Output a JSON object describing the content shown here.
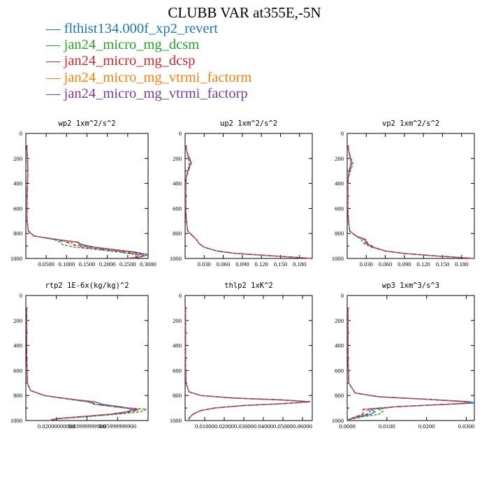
{
  "figure": {
    "title": "CLUBB VAR at355E,-5N"
  },
  "legend": [
    {
      "name": "flthist134.000f_xp2_revert",
      "color": "#1f77b4"
    },
    {
      "name": "jan24_micro_mg_dcsm",
      "color": "#2ca02c"
    },
    {
      "name": "jan24_micro_mg_dcsp",
      "color": "#d62728"
    },
    {
      "name": "jan24_micro_mg_vtrmi_factorm",
      "color": "#ff7f0e"
    },
    {
      "name": "jan24_micro_mg_vtrmi_factorp",
      "color": "#7b3f99"
    }
  ],
  "chart_data": [
    {
      "type": "line",
      "title": "wp2  1xm^2/s^2",
      "ylim": [
        1000,
        0
      ],
      "xlim": [
        0,
        0.3
      ],
      "yticks": [
        "0",
        "200",
        "400",
        "600",
        "800",
        "1000"
      ],
      "xticks": [
        "0.0500",
        "0.1000",
        "0.1500",
        "0.2000",
        "0.2500",
        "0.3000"
      ],
      "y": [
        100,
        200,
        300,
        400,
        500,
        600,
        700,
        780,
        820,
        850,
        870,
        890,
        910,
        930,
        950,
        970,
        990,
        1000
      ],
      "series": [
        {
          "x": [
            0.002,
            0.004,
            0.005,
            0.004,
            0.003,
            0.003,
            0.003,
            0.006,
            0.02,
            0.08,
            0.125,
            0.14,
            0.17,
            0.22,
            0.27,
            0.3,
            0.28,
            0.26
          ]
        },
        {
          "x": [
            0.002,
            0.004,
            0.005,
            0.004,
            0.003,
            0.003,
            0.003,
            0.006,
            0.02,
            0.07,
            0.085,
            0.09,
            0.12,
            0.18,
            0.23,
            0.27,
            0.27,
            0.25
          ]
        },
        {
          "x": [
            0.002,
            0.004,
            0.005,
            0.004,
            0.003,
            0.003,
            0.003,
            0.006,
            0.02,
            0.075,
            0.13,
            0.13,
            0.16,
            0.21,
            0.26,
            0.29,
            0.28,
            0.26
          ]
        },
        {
          "x": [
            0.002,
            0.004,
            0.005,
            0.004,
            0.003,
            0.003,
            0.003,
            0.006,
            0.02,
            0.075,
            0.11,
            0.12,
            0.15,
            0.2,
            0.25,
            0.28,
            0.27,
            0.25
          ]
        },
        {
          "x": [
            0.002,
            0.004,
            0.005,
            0.004,
            0.003,
            0.003,
            0.003,
            0.006,
            0.02,
            0.075,
            0.1,
            0.115,
            0.14,
            0.19,
            0.24,
            0.28,
            0.27,
            0.25
          ]
        }
      ]
    },
    {
      "type": "line",
      "title": "up2  1xm^2/s^2",
      "ylim": [
        1000,
        0
      ],
      "xlim": [
        0,
        0.2
      ],
      "yticks": [
        "0",
        "200",
        "400",
        "600",
        "800",
        "1000"
      ],
      "xticks": [
        "0.030",
        "0.060",
        "0.090",
        "0.120",
        "0.150",
        "0.180"
      ],
      "y": [
        100,
        150,
        200,
        230,
        260,
        300,
        350,
        400,
        500,
        600,
        700,
        780,
        820,
        850,
        880,
        910,
        940,
        960,
        980,
        1000
      ],
      "series": [
        {
          "x": [
            0.001,
            0.003,
            0.006,
            0.009,
            0.007,
            0.004,
            0.002,
            0.001,
            0.001,
            0.001,
            0.002,
            0.004,
            0.012,
            0.018,
            0.022,
            0.03,
            0.05,
            0.08,
            0.14,
            0.2
          ]
        },
        {
          "x": [
            0.001,
            0.003,
            0.005,
            0.006,
            0.006,
            0.004,
            0.002,
            0.001,
            0.001,
            0.001,
            0.002,
            0.004,
            0.012,
            0.018,
            0.022,
            0.03,
            0.05,
            0.08,
            0.14,
            0.2
          ]
        },
        {
          "x": [
            0.001,
            0.003,
            0.007,
            0.01,
            0.008,
            0.005,
            0.002,
            0.001,
            0.001,
            0.001,
            0.002,
            0.004,
            0.012,
            0.018,
            0.022,
            0.03,
            0.05,
            0.08,
            0.14,
            0.2
          ]
        },
        {
          "x": [
            0.001,
            0.003,
            0.006,
            0.009,
            0.007,
            0.004,
            0.002,
            0.001,
            0.001,
            0.001,
            0.002,
            0.004,
            0.012,
            0.018,
            0.022,
            0.03,
            0.05,
            0.08,
            0.14,
            0.2
          ]
        },
        {
          "x": [
            0.001,
            0.003,
            0.006,
            0.009,
            0.007,
            0.004,
            0.002,
            0.001,
            0.001,
            0.001,
            0.002,
            0.004,
            0.012,
            0.018,
            0.022,
            0.03,
            0.05,
            0.08,
            0.14,
            0.2
          ]
        }
      ]
    },
    {
      "type": "line",
      "title": "vp2  1xm^2/s^2",
      "ylim": [
        1000,
        0
      ],
      "xlim": [
        0,
        0.2
      ],
      "yticks": [
        "0",
        "200",
        "400",
        "600",
        "800",
        "1000"
      ],
      "xticks": [
        "0.030",
        "0.060",
        "0.090",
        "0.120",
        "0.150",
        "0.180"
      ],
      "y": [
        100,
        150,
        200,
        230,
        260,
        300,
        350,
        400,
        500,
        600,
        700,
        780,
        820,
        850,
        880,
        910,
        940,
        960,
        980,
        1000
      ],
      "series": [
        {
          "x": [
            0.001,
            0.003,
            0.005,
            0.006,
            0.005,
            0.003,
            0.002,
            0.001,
            0.001,
            0.001,
            0.002,
            0.004,
            0.014,
            0.028,
            0.03,
            0.04,
            0.06,
            0.09,
            0.14,
            0.2
          ]
        },
        {
          "x": [
            0.001,
            0.003,
            0.006,
            0.009,
            0.008,
            0.005,
            0.002,
            0.001,
            0.001,
            0.001,
            0.002,
            0.004,
            0.014,
            0.022,
            0.026,
            0.038,
            0.06,
            0.09,
            0.14,
            0.2
          ]
        },
        {
          "x": [
            0.001,
            0.003,
            0.005,
            0.007,
            0.006,
            0.004,
            0.002,
            0.001,
            0.001,
            0.001,
            0.002,
            0.004,
            0.014,
            0.03,
            0.032,
            0.042,
            0.06,
            0.09,
            0.14,
            0.2
          ]
        },
        {
          "x": [
            0.001,
            0.003,
            0.005,
            0.006,
            0.005,
            0.003,
            0.002,
            0.001,
            0.001,
            0.001,
            0.002,
            0.004,
            0.014,
            0.026,
            0.029,
            0.04,
            0.06,
            0.09,
            0.14,
            0.2
          ]
        },
        {
          "x": [
            0.001,
            0.003,
            0.005,
            0.006,
            0.005,
            0.003,
            0.002,
            0.001,
            0.001,
            0.001,
            0.002,
            0.004,
            0.014,
            0.027,
            0.03,
            0.04,
            0.06,
            0.09,
            0.14,
            0.2
          ]
        }
      ]
    },
    {
      "type": "line",
      "title": "rtp2  1E-6x(kg/kg)^2",
      "ylim": [
        1000,
        0
      ],
      "xlim": [
        0,
        0.08
      ],
      "yticks": [
        "0",
        "200",
        "400",
        "600",
        "800",
        "1000"
      ],
      "xticks": [
        "0.02000000000",
        "0.03999999900",
        "0.05999999900"
      ],
      "y": [
        100,
        300,
        500,
        700,
        760,
        800,
        830,
        850,
        870,
        890,
        910,
        930,
        950,
        970,
        985,
        1000
      ],
      "series": [
        {
          "x": [
            0.0005,
            0.0005,
            0.0006,
            0.001,
            0.003,
            0.012,
            0.03,
            0.045,
            0.05,
            0.062,
            0.07,
            0.066,
            0.055,
            0.035,
            0.02,
            0.015
          ]
        },
        {
          "x": [
            0.0005,
            0.0005,
            0.0006,
            0.001,
            0.003,
            0.012,
            0.028,
            0.04,
            0.045,
            0.06,
            0.079,
            0.075,
            0.06,
            0.04,
            0.022,
            0.015
          ]
        },
        {
          "x": [
            0.0005,
            0.0005,
            0.0006,
            0.001,
            0.003,
            0.012,
            0.03,
            0.042,
            0.046,
            0.058,
            0.072,
            0.068,
            0.056,
            0.036,
            0.02,
            0.015
          ]
        },
        {
          "x": [
            0.0005,
            0.0005,
            0.0006,
            0.001,
            0.003,
            0.012,
            0.029,
            0.041,
            0.045,
            0.058,
            0.075,
            0.07,
            0.057,
            0.036,
            0.02,
            0.015
          ]
        },
        {
          "x": [
            0.0005,
            0.0005,
            0.0006,
            0.001,
            0.003,
            0.012,
            0.029,
            0.041,
            0.045,
            0.058,
            0.074,
            0.069,
            0.056,
            0.036,
            0.02,
            0.015
          ]
        }
      ]
    },
    {
      "type": "line",
      "title": "thlp2  1xK^2",
      "ylim": [
        1000,
        0
      ],
      "xlim": [
        0,
        0.065
      ],
      "yticks": [
        "0",
        "200",
        "400",
        "600",
        "800",
        "1000"
      ],
      "xticks": [
        "0.01000",
        "0.02000",
        "0.03000",
        "0.04000",
        "0.05000",
        "0.06000"
      ],
      "y": [
        100,
        300,
        500,
        700,
        770,
        800,
        820,
        835,
        850,
        865,
        880,
        900,
        920,
        950,
        980,
        1000
      ],
      "series": [
        {
          "x": [
            0.0002,
            0.0002,
            0.0002,
            0.0004,
            0.002,
            0.008,
            0.025,
            0.05,
            0.064,
            0.05,
            0.03,
            0.015,
            0.008,
            0.004,
            0.002,
            0.002
          ]
        },
        {
          "x": [
            0.0002,
            0.0002,
            0.0002,
            0.0004,
            0.002,
            0.008,
            0.024,
            0.048,
            0.064,
            0.05,
            0.03,
            0.015,
            0.008,
            0.004,
            0.002,
            0.002
          ]
        },
        {
          "x": [
            0.0002,
            0.0002,
            0.0002,
            0.0004,
            0.002,
            0.008,
            0.024,
            0.049,
            0.064,
            0.05,
            0.03,
            0.015,
            0.008,
            0.004,
            0.002,
            0.002
          ]
        },
        {
          "x": [
            0.0002,
            0.0002,
            0.0002,
            0.0004,
            0.002,
            0.008,
            0.025,
            0.05,
            0.064,
            0.05,
            0.03,
            0.015,
            0.008,
            0.004,
            0.002,
            0.002
          ]
        },
        {
          "x": [
            0.0002,
            0.0002,
            0.0002,
            0.0004,
            0.002,
            0.008,
            0.025,
            0.05,
            0.064,
            0.05,
            0.03,
            0.015,
            0.008,
            0.004,
            0.002,
            0.002
          ]
        }
      ]
    },
    {
      "type": "line",
      "title": "wp3  1xm^3/s^3",
      "ylim": [
        1000,
        0
      ],
      "xlim": [
        0,
        0.032
      ],
      "yticks": [
        "0",
        "200",
        "400",
        "600",
        "800",
        "1000"
      ],
      "xticks": [
        "0.0000",
        "0.0100",
        "0.0200",
        "0.0300"
      ],
      "y": [
        100,
        300,
        500,
        700,
        780,
        810,
        830,
        850,
        860,
        875,
        890,
        910,
        930,
        950,
        970,
        990,
        1000
      ],
      "series": [
        {
          "x": [
            0.0002,
            0.0002,
            0.0002,
            0.0004,
            0.002,
            0.008,
            0.02,
            0.031,
            0.032,
            0.022,
            0.012,
            0.006,
            0.007,
            0.006,
            0.003,
            0.0005,
            0.0002
          ]
        },
        {
          "x": [
            0.0002,
            0.0002,
            0.0002,
            0.0004,
            0.002,
            0.008,
            0.02,
            0.029,
            0.031,
            0.022,
            0.012,
            0.008,
            0.009,
            0.008,
            0.004,
            0.0008,
            0.0002
          ]
        },
        {
          "x": [
            0.0002,
            0.0002,
            0.0002,
            0.0004,
            0.002,
            0.008,
            0.02,
            0.03,
            0.031,
            0.022,
            0.012,
            0.004,
            0.004,
            0.004,
            0.002,
            0.0004,
            0.0002
          ]
        },
        {
          "x": [
            0.0002,
            0.0002,
            0.0002,
            0.0004,
            0.002,
            0.008,
            0.02,
            0.03,
            0.031,
            0.022,
            0.012,
            0.005,
            0.005,
            0.005,
            0.0025,
            0.0004,
            0.0002
          ]
        },
        {
          "x": [
            0.0002,
            0.0002,
            0.0002,
            0.0004,
            0.002,
            0.008,
            0.02,
            0.03,
            0.031,
            0.022,
            0.012,
            0.005,
            0.006,
            0.005,
            0.0025,
            0.0004,
            0.0002
          ]
        }
      ]
    }
  ]
}
